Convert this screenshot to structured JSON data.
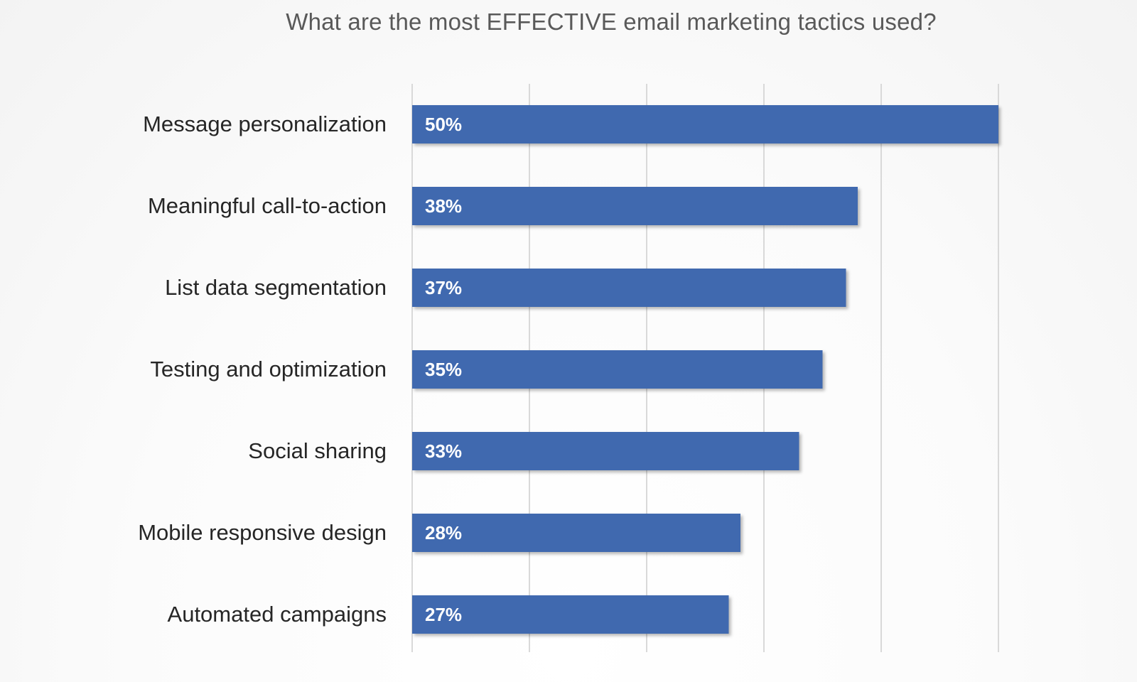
{
  "chart_data": {
    "type": "bar",
    "orientation": "horizontal",
    "title": "What are the most EFFECTIVE email marketing tactics used?",
    "categories": [
      "Message personalization",
      "Meaningful call-to-action",
      "List data segmentation",
      "Testing and optimization",
      "Social sharing",
      "Mobile responsive design",
      "Automated campaigns"
    ],
    "values": [
      50,
      38,
      37,
      35,
      33,
      28,
      27
    ],
    "data_labels": [
      "50%",
      "38%",
      "37%",
      "35%",
      "33%",
      "28%",
      "27%"
    ],
    "xlim": [
      0,
      50
    ],
    "gridlines": [
      0,
      10,
      20,
      30,
      40,
      50
    ],
    "grid": true,
    "legend": "none",
    "bar_color": "#3F69AF",
    "grid_color": "#D9D9D9"
  }
}
